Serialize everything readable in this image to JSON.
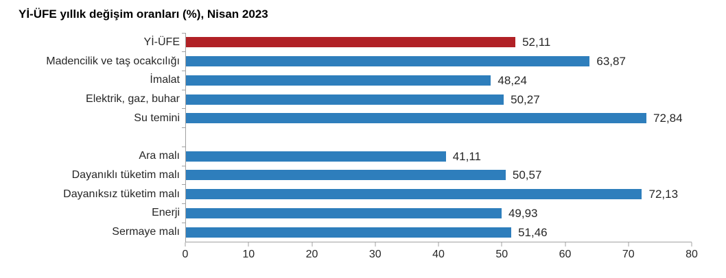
{
  "chart_data": {
    "type": "bar",
    "orientation": "horizontal",
    "title": "Yİ-ÜFE yıllık değişim oranları (%), Nisan 2023",
    "xlabel": "",
    "ylabel": "",
    "xlim": [
      0,
      80
    ],
    "x_ticks": [
      0,
      10,
      20,
      30,
      40,
      50,
      60,
      70,
      80
    ],
    "grid": false,
    "legend": "none",
    "rows": [
      {
        "label": "Yİ-ÜFE",
        "value": 52.11,
        "value_label": "52,11",
        "highlight": true
      },
      {
        "label": "Madencilik ve taş ocakcılığı",
        "value": 63.87,
        "value_label": "63,87",
        "highlight": false
      },
      {
        "label": "İmalat",
        "value": 48.24,
        "value_label": "48,24",
        "highlight": false
      },
      {
        "label": "Elektrik, gaz, buhar",
        "value": 50.27,
        "value_label": "50,27",
        "highlight": false
      },
      {
        "label": "Su temini",
        "value": 72.84,
        "value_label": "72,84",
        "highlight": false
      },
      {
        "label": null,
        "value": null,
        "value_label": null,
        "highlight": false
      },
      {
        "label": "Ara malı",
        "value": 41.11,
        "value_label": "41,11",
        "highlight": false
      },
      {
        "label": "Dayanıklı tüketim malı",
        "value": 50.57,
        "value_label": "50,57",
        "highlight": false
      },
      {
        "label": "Dayanıksız tüketim malı",
        "value": 72.13,
        "value_label": "72,13",
        "highlight": false
      },
      {
        "label": "Enerji",
        "value": 49.93,
        "value_label": "49,93",
        "highlight": false
      },
      {
        "label": "Sermaye malı",
        "value": 51.46,
        "value_label": "51,46",
        "highlight": false
      }
    ]
  },
  "colors": {
    "bar_default": "#2e7ebc",
    "bar_highlight": "#b12126",
    "axis": "#a0a0a0",
    "text": "#262626",
    "title_text": "#000000",
    "background": "#ffffff"
  }
}
